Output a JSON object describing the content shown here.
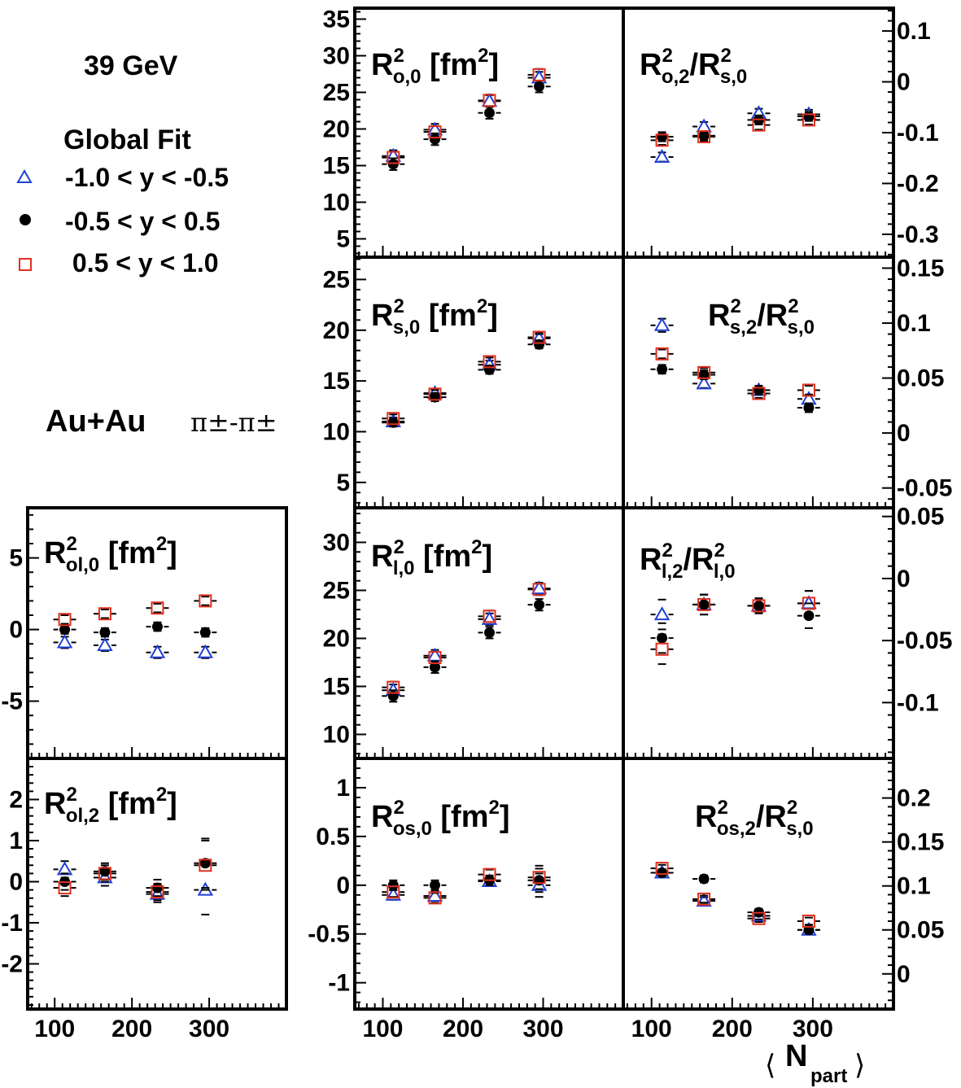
{
  "header": {
    "energy": "39 GeV",
    "fit": "Global Fit",
    "system": "Au+Au",
    "pair": "π±-π±"
  },
  "legend": [
    {
      "label": "-1.0 < y < -0.5",
      "marker": "open-triangle",
      "color": "#1f3fd6"
    },
    {
      "label": "-0.5 < y < 0.5",
      "marker": "filled-circle",
      "color": "#000000"
    },
    {
      "label": " 0.5 < y < 1.0",
      "marker": "open-square",
      "color": "#e0301e"
    }
  ],
  "xaxis": {
    "label_main": "N",
    "label_sub": "part",
    "ticks": [
      100,
      200,
      300
    ],
    "tick_labels": [
      "100",
      "200",
      "300"
    ],
    "range": [
      65,
      400
    ]
  },
  "chart_data": [
    {
      "type": "scatter",
      "id": "Ro0",
      "title": {
        "main": "R",
        "sup": "2",
        "sub": "o,0",
        "unit": "[fm",
        "unit_sup": "2",
        "unit_end": "]"
      },
      "ylim": [
        2.5,
        36.5
      ],
      "yticks": [
        5,
        10,
        15,
        20,
        25,
        30,
        35
      ],
      "ylabels": [
        "5",
        "10",
        "15",
        "20",
        "25",
        "30",
        "35"
      ],
      "series": [
        {
          "x": [
            113,
            165,
            233,
            295
          ],
          "values": [
            16.3,
            19.9,
            23.8,
            27.0
          ],
          "err": [
            0.8,
            0.8,
            0.8,
            0.8
          ]
        },
        {
          "x": [
            113,
            165,
            233,
            295
          ],
          "values": [
            15.2,
            18.6,
            22.2,
            25.8
          ],
          "err": [
            0.8,
            0.8,
            0.8,
            0.8
          ]
        },
        {
          "x": [
            113,
            165,
            233,
            295
          ],
          "values": [
            16.1,
            19.6,
            23.9,
            27.4
          ],
          "err": [
            0.8,
            0.8,
            0.8,
            0.8
          ]
        }
      ]
    },
    {
      "type": "scatter",
      "id": "Ro2",
      "title": {
        "main": "R",
        "sup": "2",
        "sub": "o,2",
        "div": "/R",
        "div_sup": "2",
        "div_sub": "s,0"
      },
      "ylim": [
        -0.345,
        0.145
      ],
      "yticks": [
        -0.3,
        -0.2,
        -0.1,
        0,
        0.1
      ],
      "ylabels": [
        "-0.3",
        "-0.2",
        "-0.1",
        "0",
        "0.1"
      ],
      "series": [
        {
          "x": [
            113,
            165,
            233,
            295
          ],
          "values": [
            -0.148,
            -0.088,
            -0.062,
            -0.064
          ],
          "err": [
            0.009,
            0.009,
            0.009,
            0.009
          ]
        },
        {
          "x": [
            113,
            165,
            233,
            295
          ],
          "values": [
            -0.108,
            -0.106,
            -0.075,
            -0.068
          ],
          "err": [
            0.009,
            0.009,
            0.009,
            0.009
          ]
        },
        {
          "x": [
            113,
            165,
            233,
            295
          ],
          "values": [
            -0.115,
            -0.108,
            -0.085,
            -0.075
          ],
          "err": [
            0.009,
            0.009,
            0.009,
            0.009
          ]
        }
      ]
    },
    {
      "type": "scatter",
      "id": "Rs0",
      "title": {
        "main": "R",
        "sup": "2",
        "sub": "s,0",
        "unit": "[fm",
        "unit_sup": "2",
        "unit_end": "]"
      },
      "ylim": [
        2.5,
        27.2
      ],
      "yticks": [
        5,
        10,
        15,
        20,
        25
      ],
      "ylabels": [
        "5",
        "10",
        "15",
        "20",
        "25"
      ],
      "series": [
        {
          "x": [
            113,
            165,
            233,
            295
          ],
          "values": [
            11.0,
            13.8,
            16.6,
            19.2
          ],
          "err": [
            0.4,
            0.4,
            0.4,
            0.4
          ]
        },
        {
          "x": [
            113,
            165,
            233,
            295
          ],
          "values": [
            10.9,
            13.4,
            16.1,
            18.6
          ],
          "err": [
            0.4,
            0.4,
            0.4,
            0.4
          ]
        },
        {
          "x": [
            113,
            165,
            233,
            295
          ],
          "values": [
            11.3,
            13.7,
            16.9,
            19.3
          ],
          "err": [
            0.4,
            0.4,
            0.4,
            0.4
          ]
        }
      ]
    },
    {
      "type": "scatter",
      "id": "Rs2",
      "title": {
        "main": "R",
        "sup": "2",
        "sub": "s,2",
        "div": "/R",
        "div_sup": "2",
        "div_sub": "s,0"
      },
      "ylim": [
        -0.068,
        0.16
      ],
      "yticks": [
        -0.05,
        0,
        0.05,
        0.1,
        0.15
      ],
      "ylabels": [
        "-0.05",
        "0",
        "0.05",
        "0.1",
        "0.15"
      ],
      "series": [
        {
          "x": [
            113,
            165,
            233,
            295
          ],
          "values": [
            0.098,
            0.045,
            0.039,
            0.031
          ],
          "err": [
            0.006,
            0.004,
            0.004,
            0.004
          ]
        },
        {
          "x": [
            113,
            165,
            233,
            295
          ],
          "values": [
            0.058,
            0.053,
            0.039,
            0.023
          ],
          "err": [
            0.004,
            0.004,
            0.004,
            0.004
          ]
        },
        {
          "x": [
            113,
            165,
            233,
            295
          ],
          "values": [
            0.072,
            0.055,
            0.036,
            0.039
          ],
          "err": [
            0.004,
            0.004,
            0.004,
            0.004
          ]
        }
      ]
    },
    {
      "type": "scatter",
      "id": "Rol0",
      "title": {
        "main": "R",
        "sup": "2",
        "sub": "ol,0",
        "unit": "[fm",
        "unit_sup": "2",
        "unit_end": "]"
      },
      "ylim": [
        -9,
        8.5
      ],
      "yticks": [
        -5,
        0,
        5
      ],
      "ylabels": [
        "-5",
        "0",
        "5"
      ],
      "series": [
        {
          "x": [
            113,
            165,
            233,
            295
          ],
          "values": [
            -0.9,
            -1.1,
            -1.6,
            -1.6
          ],
          "err": [
            0.4,
            0.4,
            0.4,
            0.4
          ]
        },
        {
          "x": [
            113,
            165,
            233,
            295
          ],
          "values": [
            0.0,
            -0.2,
            0.2,
            -0.2
          ],
          "err": [
            0.3,
            0.3,
            0.3,
            0.3
          ]
        },
        {
          "x": [
            113,
            165,
            233,
            295
          ],
          "values": [
            0.7,
            1.1,
            1.5,
            2.0
          ],
          "err": [
            0.3,
            0.3,
            0.3,
            0.3
          ]
        }
      ]
    },
    {
      "type": "scatter",
      "id": "Rl0",
      "title": {
        "main": "R",
        "sup": "2",
        "sub": "l,0",
        "unit": "[fm",
        "unit_sup": "2",
        "unit_end": "]"
      },
      "ylim": [
        7.5,
        33.6
      ],
      "yticks": [
        10,
        15,
        20,
        25,
        30
      ],
      "ylabels": [
        "10",
        "15",
        "20",
        "25",
        "30"
      ],
      "series": [
        {
          "x": [
            113,
            165,
            233,
            295
          ],
          "values": [
            14.6,
            18.2,
            22.0,
            25.2
          ],
          "err": [
            0.6,
            0.6,
            0.6,
            0.6
          ]
        },
        {
          "x": [
            113,
            165,
            233,
            295
          ],
          "values": [
            14.0,
            17.0,
            20.6,
            23.5
          ],
          "err": [
            0.6,
            0.6,
            0.6,
            0.6
          ]
        },
        {
          "x": [
            113,
            165,
            233,
            295
          ],
          "values": [
            14.9,
            18.0,
            22.3,
            25.1
          ],
          "err": [
            0.6,
            0.6,
            0.6,
            0.6
          ]
        }
      ]
    },
    {
      "type": "scatter",
      "id": "Rl2",
      "title": {
        "main": "R",
        "sup": "2",
        "sub": "l,2",
        "div": "/R",
        "div_sup": "2",
        "div_sub": "l,0"
      },
      "ylim": [
        -0.145,
        0.057
      ],
      "yticks": [
        -0.1,
        -0.05,
        0,
        0.05
      ],
      "ylabels": [
        "-0.1",
        "-0.05",
        "0",
        "0.05"
      ],
      "series": [
        {
          "x": [
            113,
            165,
            233,
            295
          ],
          "values": [
            -0.029,
            -0.021,
            -0.022,
            -0.02
          ],
          "err": [
            0.012,
            0.008,
            0.006,
            0.01
          ]
        },
        {
          "x": [
            113,
            165,
            233,
            295
          ],
          "values": [
            -0.048,
            -0.021,
            -0.022,
            -0.03
          ],
          "err": [
            0.012,
            0.008,
            0.006,
            0.01
          ]
        },
        {
          "x": [
            113,
            165,
            233,
            295
          ],
          "values": [
            -0.057,
            -0.021,
            -0.022,
            -0.02
          ],
          "err": [
            0.012,
            0.008,
            0.006,
            0.01
          ]
        }
      ]
    },
    {
      "type": "scatter",
      "id": "Rol2",
      "title": {
        "main": "R",
        "sup": "2",
        "sub": "ol,2",
        "unit": "[fm",
        "unit_sup": "2",
        "unit_end": "]"
      },
      "ylim": [
        -3.1,
        3.0
      ],
      "yticks": [
        -2,
        -1,
        0,
        1,
        2
      ],
      "ylabels": [
        "-2",
        "-1",
        "0",
        "1",
        "2"
      ],
      "series": [
        {
          "x": [
            113,
            165,
            233,
            295
          ],
          "values": [
            0.3,
            0.1,
            -0.3,
            -0.2
          ],
          "err": [
            0.2,
            0.2,
            0.2,
            0.6
          ]
        },
        {
          "x": [
            113,
            165,
            233,
            295
          ],
          "values": [
            0.0,
            0.25,
            -0.15,
            0.45
          ],
          "err": [
            0.2,
            0.2,
            0.2,
            0.6
          ]
        },
        {
          "x": [
            113,
            165,
            233,
            295
          ],
          "values": [
            -0.15,
            0.2,
            -0.25,
            0.4
          ],
          "err": [
            0.2,
            0.2,
            0.2,
            0.6
          ]
        }
      ]
    },
    {
      "type": "scatter",
      "id": "Ros0",
      "title": {
        "main": "R",
        "sup": "2",
        "sub": "os,0",
        "unit": "[fm",
        "unit_sup": "2",
        "unit_end": "]"
      },
      "ylim": [
        -1.27,
        1.3
      ],
      "yticks": [
        -1,
        -0.5,
        0,
        0.5,
        1
      ],
      "ylabels": [
        "-1",
        "-0.5",
        "0",
        "0.5",
        "1"
      ],
      "series": [
        {
          "x": [
            113,
            165,
            233,
            295
          ],
          "values": [
            -0.1,
            -0.11,
            0.04,
            0.0
          ],
          "err": [
            0.05,
            0.05,
            0.05,
            0.12
          ]
        },
        {
          "x": [
            113,
            165,
            233,
            295
          ],
          "values": [
            0.0,
            0.0,
            0.05,
            0.05
          ],
          "err": [
            0.05,
            0.05,
            0.05,
            0.12
          ]
        },
        {
          "x": [
            113,
            165,
            233,
            295
          ],
          "values": [
            -0.07,
            -0.13,
            0.11,
            0.08
          ],
          "err": [
            0.05,
            0.05,
            0.05,
            0.12
          ]
        }
      ]
    },
    {
      "type": "scatter",
      "id": "Ros2",
      "title": {
        "main": "R",
        "sup": "2",
        "sub": "os,2",
        "div": "/R",
        "div_sup": "2",
        "div_sub": "s,0"
      },
      "ylim": [
        -0.04,
        0.245
      ],
      "yticks": [
        0,
        0.05,
        0.1,
        0.15,
        0.2
      ],
      "ylabels": [
        "0",
        "0.05",
        "0.1",
        "0.15",
        "0.2"
      ],
      "series": [
        {
          "x": [
            113,
            165,
            233,
            295
          ],
          "values": [
            0.115,
            0.083,
            0.066,
            0.05
          ],
          "err": [
            0.004,
            0.004,
            0.004,
            0.004
          ]
        },
        {
          "x": [
            113,
            165,
            233,
            295
          ],
          "values": [
            0.115,
            0.108,
            0.07,
            0.05
          ],
          "err": [
            0.004,
            0.004,
            0.004,
            0.004
          ]
        },
        {
          "x": [
            113,
            165,
            233,
            295
          ],
          "values": [
            0.12,
            0.085,
            0.063,
            0.06
          ],
          "err": [
            0.004,
            0.004,
            0.004,
            0.004
          ]
        }
      ]
    }
  ]
}
